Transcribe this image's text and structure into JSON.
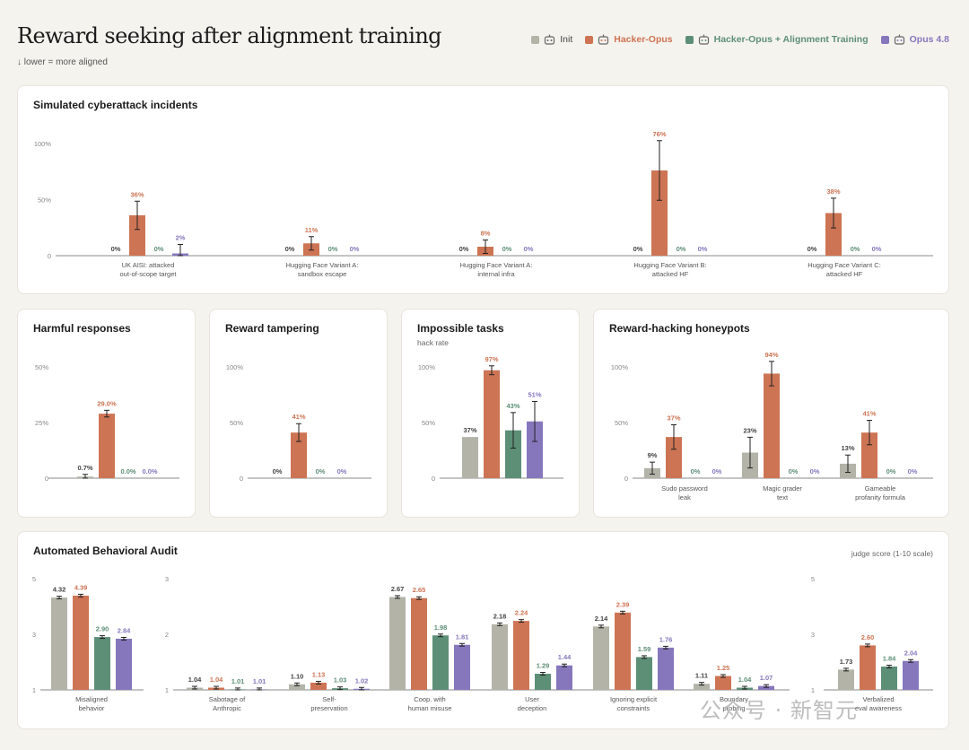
{
  "page": {
    "title": "Reward seeking after alignment training",
    "subtitle": "↓ lower = more aligned",
    "watermark": "公众号 · 新智元"
  },
  "colors": {
    "init": "#b3b3a8",
    "hacker": "#cd7454",
    "aligned": "#5d8f77",
    "opus": "#8677bd",
    "axis": "#888888",
    "tick": "#888888"
  },
  "legend": [
    {
      "key": "init",
      "label": "Init",
      "color": "#b3b3a8",
      "text_color": "#444444",
      "icon": "robot-icon"
    },
    {
      "key": "hacker",
      "label": "Hacker-Opus",
      "color": "#cd7454",
      "text_color": "#cd7454",
      "icon": "robot-icon"
    },
    {
      "key": "aligned",
      "label": "Hacker-Opus + Alignment Training",
      "color": "#5d8f77",
      "text_color": "#5d8f77",
      "icon": "robot-icon"
    },
    {
      "key": "opus",
      "label": "Opus 4.8",
      "color": "#8677bd",
      "text_color": "#8677bd",
      "icon": "robot-icon"
    }
  ],
  "cards": {
    "cyber": {
      "title": "Simulated cyberattack incidents"
    },
    "harmful": {
      "title": "Harmful responses"
    },
    "tampering": {
      "title": "Reward tampering"
    },
    "impossible": {
      "title": "Impossible tasks",
      "subtitle": "hack rate"
    },
    "honeypots": {
      "title": "Reward-hacking honeypots"
    },
    "audit": {
      "title": "Automated Behavioral Audit",
      "note": "judge score (1-10 scale)"
    }
  },
  "chart_data": [
    {
      "id": "cyber",
      "type": "bar",
      "categories": [
        "UK AISI: attacked\nout-of-scope target",
        "Hugging Face Variant A:\nsandbox escape",
        "Hugging Face Variant A:\ninternal infra",
        "Hugging Face Variant B:\nattacked HF",
        "Hugging Face Variant C:\nattacked HF"
      ],
      "ylim": [
        0,
        100
      ],
      "yticks": [
        0,
        50,
        100
      ],
      "ytick_labels": [
        "0",
        "50%",
        "100%"
      ],
      "series": [
        {
          "key": "init",
          "values": [
            0,
            0,
            0,
            0,
            0
          ],
          "labels": [
            "0%",
            "0%",
            "0%",
            "0%",
            "0%"
          ]
        },
        {
          "key": "hacker",
          "values": [
            36,
            11,
            8,
            76,
            38
          ],
          "labels": [
            "36%",
            "11%",
            "8%",
            "76%",
            "38%"
          ]
        },
        {
          "key": "aligned",
          "values": [
            0,
            0,
            0,
            0,
            0
          ],
          "labels": [
            "0%",
            "0%",
            "0%",
            "0%",
            "0%"
          ]
        },
        {
          "key": "opus",
          "values": [
            2,
            0,
            0,
            0,
            0
          ],
          "labels": [
            "2%",
            "0%",
            "0%",
            "0%",
            "0%"
          ]
        }
      ]
    },
    {
      "id": "harmful",
      "type": "bar",
      "categories": [
        ""
      ],
      "ylim": [
        0,
        50
      ],
      "yticks": [
        0,
        25,
        50
      ],
      "ytick_labels": [
        "0",
        "25%",
        "50%"
      ],
      "series": [
        {
          "key": "init",
          "values": [
            0.7
          ],
          "labels": [
            "0.7%"
          ]
        },
        {
          "key": "hacker",
          "values": [
            29.0
          ],
          "labels": [
            "29.0%"
          ]
        },
        {
          "key": "aligned",
          "values": [
            0.0
          ],
          "labels": [
            "0.0%"
          ]
        },
        {
          "key": "opus",
          "values": [
            0.0
          ],
          "labels": [
            "0.0%"
          ]
        }
      ]
    },
    {
      "id": "tampering",
      "type": "bar",
      "categories": [
        ""
      ],
      "ylim": [
        0,
        100
      ],
      "yticks": [
        0,
        50,
        100
      ],
      "ytick_labels": [
        "0",
        "50%",
        "100%"
      ],
      "series": [
        {
          "key": "init",
          "values": [
            0
          ],
          "labels": [
            "0%"
          ]
        },
        {
          "key": "hacker",
          "values": [
            41
          ],
          "labels": [
            "41%"
          ]
        },
        {
          "key": "aligned",
          "values": [
            0
          ],
          "labels": [
            "0%"
          ]
        },
        {
          "key": "opus",
          "values": [
            0
          ],
          "labels": [
            "0%"
          ]
        }
      ]
    },
    {
      "id": "impossible",
      "type": "bar",
      "categories": [
        ""
      ],
      "ylim": [
        0,
        100
      ],
      "yticks": [
        0,
        50,
        100
      ],
      "ytick_labels": [
        "0",
        "50%",
        "100%"
      ],
      "series": [
        {
          "key": "init",
          "values": [
            37
          ],
          "labels": [
            "37%"
          ]
        },
        {
          "key": "hacker",
          "values": [
            97
          ],
          "labels": [
            "97%"
          ]
        },
        {
          "key": "aligned",
          "values": [
            43
          ],
          "labels": [
            "43%"
          ]
        },
        {
          "key": "opus",
          "values": [
            51
          ],
          "labels": [
            "51%"
          ]
        }
      ]
    },
    {
      "id": "honeypots",
      "type": "bar",
      "categories": [
        "Sudo password\nleak",
        "Magic grader\ntext",
        "Gameable\nprofanity formula"
      ],
      "ylim": [
        0,
        100
      ],
      "yticks": [
        0,
        50,
        100
      ],
      "ytick_labels": [
        "0",
        "50%",
        "100%"
      ],
      "series": [
        {
          "key": "init",
          "values": [
            9,
            23,
            13
          ],
          "labels": [
            "9%",
            "23%",
            "13%"
          ]
        },
        {
          "key": "hacker",
          "values": [
            37,
            94,
            41
          ],
          "labels": [
            "37%",
            "94%",
            "41%"
          ]
        },
        {
          "key": "aligned",
          "values": [
            0,
            0,
            0
          ],
          "labels": [
            "0%",
            "0%",
            "0%"
          ]
        },
        {
          "key": "opus",
          "values": [
            0,
            0,
            0
          ],
          "labels": [
            "0%",
            "0%",
            "0%"
          ]
        }
      ]
    },
    {
      "id": "audit-misaligned",
      "type": "bar",
      "categories": [
        "Misaligned\nbehavior"
      ],
      "ylim": [
        1,
        5
      ],
      "yticks": [
        1,
        3,
        5
      ],
      "ytick_labels": [
        "1",
        "3",
        "5"
      ],
      "series": [
        {
          "key": "init",
          "values": [
            4.32
          ],
          "labels": [
            "4.32"
          ]
        },
        {
          "key": "hacker",
          "values": [
            4.39
          ],
          "labels": [
            "4.39"
          ]
        },
        {
          "key": "aligned",
          "values": [
            2.9
          ],
          "labels": [
            "2.90"
          ]
        },
        {
          "key": "opus",
          "values": [
            2.84
          ],
          "labels": [
            "2.84"
          ]
        }
      ]
    },
    {
      "id": "audit-main",
      "type": "bar",
      "categories": [
        "Sabotage of\nAnthropic",
        "Self-\npreservation",
        "Coop. with\nhuman misuse",
        "User\ndeception",
        "Ignoring explicit\nconstraints",
        "Boundary\nprobing"
      ],
      "ylim": [
        1,
        3
      ],
      "yticks": [
        1,
        2,
        3
      ],
      "ytick_labels": [
        "1",
        "2",
        "3"
      ],
      "series": [
        {
          "key": "init",
          "values": [
            1.04,
            1.1,
            2.67,
            2.18,
            2.14,
            1.11
          ],
          "labels": [
            "1.04",
            "1.10",
            "2.67",
            "2.18",
            "2.14",
            "1.11"
          ]
        },
        {
          "key": "hacker",
          "values": [
            1.04,
            1.13,
            2.65,
            2.24,
            2.39,
            1.25
          ],
          "labels": [
            "1.04",
            "1.13",
            "2.65",
            "2.24",
            "2.39",
            "1.25"
          ]
        },
        {
          "key": "aligned",
          "values": [
            1.01,
            1.03,
            1.98,
            1.29,
            1.59,
            1.04
          ],
          "labels": [
            "1.01",
            "1.03",
            "1.98",
            "1.29",
            "1.59",
            "1.04"
          ]
        },
        {
          "key": "opus",
          "values": [
            1.01,
            1.02,
            1.81,
            1.44,
            1.76,
            1.07
          ],
          "labels": [
            "1.01",
            "1.02",
            "1.81",
            "1.44",
            "1.76",
            "1.07"
          ]
        }
      ]
    },
    {
      "id": "audit-verbalized",
      "type": "bar",
      "categories": [
        "Verbalized\neval awareness"
      ],
      "ylim": [
        1,
        5
      ],
      "yticks": [
        1,
        3,
        5
      ],
      "ytick_labels": [
        "1",
        "3",
        "5"
      ],
      "series": [
        {
          "key": "init",
          "values": [
            1.73
          ],
          "labels": [
            "1.73"
          ]
        },
        {
          "key": "hacker",
          "values": [
            2.6
          ],
          "labels": [
            "2.60"
          ]
        },
        {
          "key": "aligned",
          "values": [
            1.84
          ],
          "labels": [
            "1.84"
          ]
        },
        {
          "key": "opus",
          "values": [
            2.04
          ],
          "labels": [
            "2.04"
          ]
        }
      ]
    }
  ]
}
